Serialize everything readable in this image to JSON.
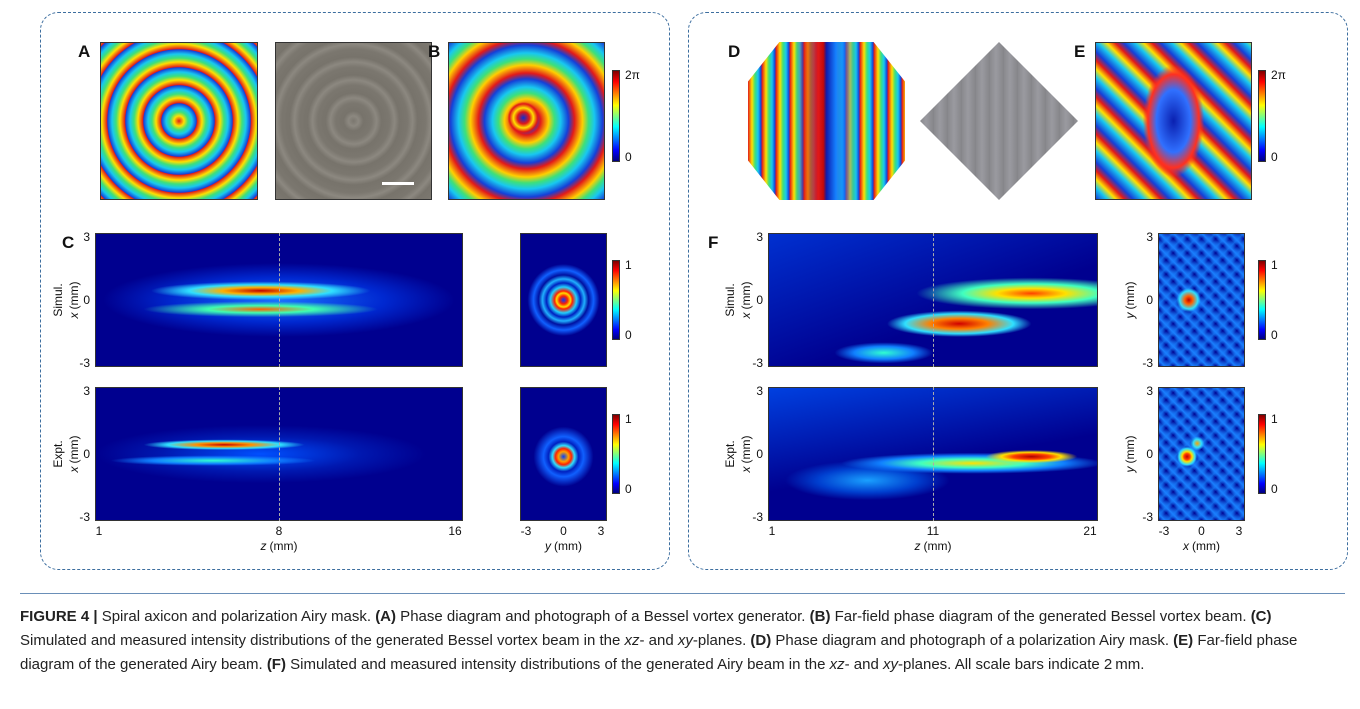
{
  "left": {
    "labels": {
      "a": "A",
      "b": "B",
      "c": "C"
    },
    "phase_colorbar": {
      "max": "2π",
      "min": "0"
    },
    "rows": [
      {
        "row": "Simul.",
        "var": "x",
        "unit": "(mm)",
        "yticks": [
          "3",
          "0",
          "-3"
        ],
        "colorbar": {
          "max": "1",
          "min": "0"
        }
      },
      {
        "row": "Expt.",
        "var": "x",
        "unit": "(mm)",
        "yticks": [
          "3",
          "0",
          "-3"
        ],
        "colorbar": {
          "max": "1",
          "min": "0"
        }
      }
    ],
    "xz_xticks": [
      "1",
      "8",
      "16"
    ],
    "xz_xlabel": {
      "var": "z",
      "unit": "(mm)"
    },
    "xy_xticks": [
      "-3",
      "0",
      "3"
    ],
    "xy_xlabel": {
      "var": "y",
      "unit": "(mm)"
    }
  },
  "right": {
    "labels": {
      "a": "D",
      "b": "E",
      "c": "F"
    },
    "phase_colorbar": {
      "max": "2π",
      "min": "0"
    },
    "rows": [
      {
        "row": "Simul.",
        "var": "x",
        "unit": "(mm)",
        "yticks": [
          "3",
          "0",
          "-3"
        ],
        "colorbar": {
          "max": "1",
          "min": "0"
        },
        "xy_yaxis": {
          "var": "y",
          "unit": "(mm)",
          "yticks": [
            "3",
            "0",
            "-3"
          ]
        }
      },
      {
        "row": "Expt.",
        "var": "x",
        "unit": "(mm)",
        "yticks": [
          "3",
          "0",
          "-3"
        ],
        "colorbar": {
          "max": "1",
          "min": "0"
        },
        "xy_yaxis": {
          "var": "y",
          "unit": "(mm)",
          "yticks": [
            "3",
            "0",
            "-3"
          ]
        }
      }
    ],
    "xz_xticks": [
      "1",
      "11",
      "21"
    ],
    "xz_xlabel": {
      "var": "z",
      "unit": "(mm)"
    },
    "xy_xticks": [
      "-3",
      "0",
      "3"
    ],
    "xy_xlabel": {
      "var": "x",
      "unit": "(mm)"
    }
  },
  "caption": {
    "segments": [
      {
        "text": "FIGURE 4 |",
        "style": "bold"
      },
      {
        "text": " Spiral axicon and polarization Airy mask. ",
        "style": "normal"
      },
      {
        "text": "(A)",
        "style": "bold"
      },
      {
        "text": " Phase diagram and photograph of a Bessel vortex generator. ",
        "style": "normal"
      },
      {
        "text": "(B)",
        "style": "bold"
      },
      {
        "text": " Far-field phase diagram of the generated Bessel vortex beam. ",
        "style": "normal"
      },
      {
        "text": "(C)",
        "style": "bold"
      },
      {
        "text": " Simulated and measured intensity distributions of the generated Bessel vortex beam in the ",
        "style": "normal"
      },
      {
        "text": "xz",
        "style": "italic"
      },
      {
        "text": "- and ",
        "style": "normal"
      },
      {
        "text": "xy",
        "style": "italic"
      },
      {
        "text": "-planes. ",
        "style": "normal"
      },
      {
        "text": "(D)",
        "style": "bold"
      },
      {
        "text": " Phase diagram and photograph of a polarization Airy mask. ",
        "style": "normal"
      },
      {
        "text": "(E)",
        "style": "bold"
      },
      {
        "text": " Far-field phase diagram of the generated Airy beam. ",
        "style": "normal"
      },
      {
        "text": "(F)",
        "style": "bold"
      },
      {
        "text": " Simulated and measured intensity distributions of the generated Airy beam in the ",
        "style": "normal"
      },
      {
        "text": "xz",
        "style": "italic"
      },
      {
        "text": "- and ",
        "style": "normal"
      },
      {
        "text": "xy",
        "style": "italic"
      },
      {
        "text": "-planes. All scale bars indicate 2 mm.",
        "style": "normal"
      }
    ]
  }
}
